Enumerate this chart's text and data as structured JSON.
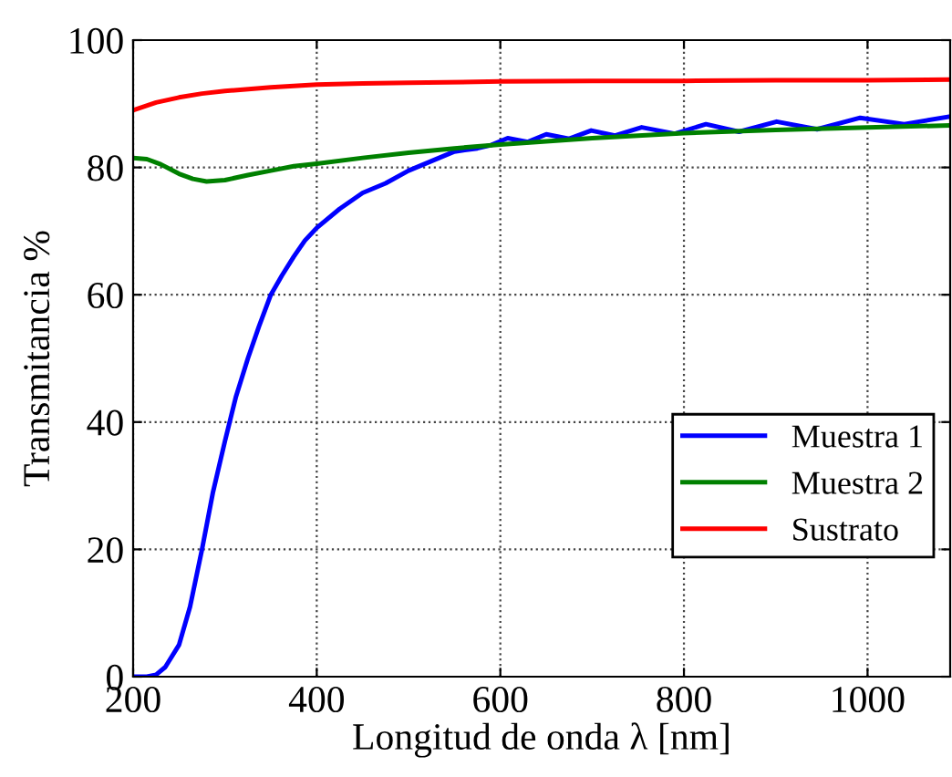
{
  "chart_data": {
    "type": "line",
    "xlabel": "Longitud de onda λ [nm]",
    "ylabel": "Transmitancia %",
    "xlim": [
      200,
      1090
    ],
    "ylim": [
      0,
      100
    ],
    "xticks": [
      200,
      400,
      600,
      800,
      1000
    ],
    "yticks": [
      0,
      20,
      40,
      60,
      80,
      100
    ],
    "grid": true,
    "legend": "right",
    "line_style": "solid",
    "marker": "none",
    "series": [
      {
        "name": "Muestra 1",
        "color": "#0000ff",
        "x": [
          200,
          215,
          225,
          235,
          250,
          262,
          275,
          287,
          300,
          312,
          325,
          337,
          350,
          362,
          375,
          387,
          400,
          425,
          450,
          475,
          500,
          525,
          550,
          575,
          590,
          608,
          630,
          650,
          675,
          699,
          725,
          754,
          790,
          824,
          860,
          901,
          945,
          992,
          1040,
          1090
        ],
        "values": [
          0,
          0,
          0.3,
          1.5,
          5,
          11,
          20,
          29,
          37,
          44,
          50,
          55,
          60,
          63,
          66,
          68.5,
          70.5,
          73.5,
          76,
          77.5,
          79.5,
          81,
          82.5,
          83,
          83.5,
          84.6,
          84,
          85.2,
          84.5,
          85.8,
          85,
          86.3,
          85.3,
          86.8,
          85.6,
          87.2,
          86,
          87.8,
          86.8,
          88
        ]
      },
      {
        "name": "Muestra 2",
        "color": "#008000",
        "x": [
          200,
          215,
          230,
          250,
          265,
          280,
          300,
          325,
          350,
          375,
          400,
          450,
          500,
          550,
          600,
          700,
          800,
          900,
          1000,
          1090
        ],
        "values": [
          81.5,
          81.3,
          80.5,
          79,
          78.2,
          77.8,
          78,
          78.8,
          79.5,
          80.2,
          80.6,
          81.5,
          82.3,
          83,
          83.6,
          84.6,
          85.4,
          85.9,
          86.3,
          86.6
        ]
      },
      {
        "name": "Sustrato",
        "color": "#ff0000",
        "x": [
          200,
          225,
          250,
          275,
          300,
          350,
          400,
          450,
          500,
          600,
          700,
          800,
          900,
          1000,
          1090
        ],
        "values": [
          89,
          90.2,
          91,
          91.6,
          92,
          92.6,
          93,
          93.2,
          93.3,
          93.5,
          93.6,
          93.6,
          93.7,
          93.7,
          93.8
        ]
      }
    ]
  }
}
